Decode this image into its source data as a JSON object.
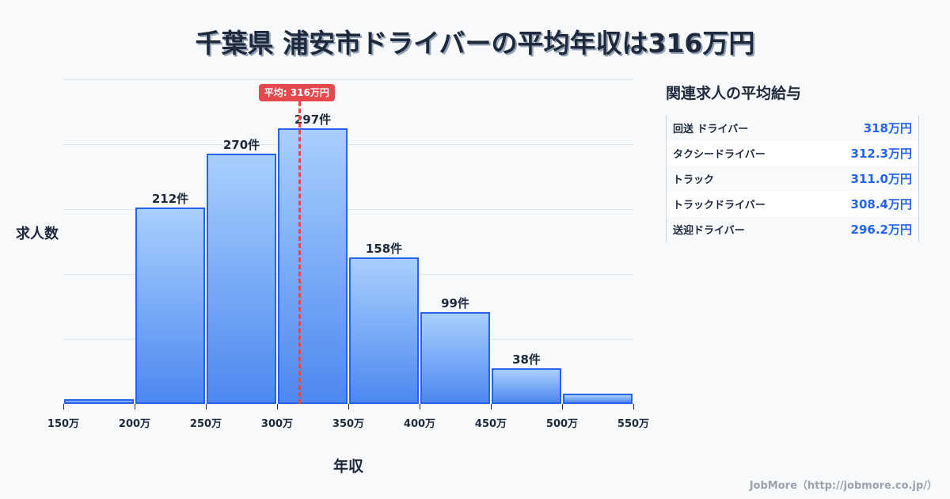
{
  "title": "千葉県 浦安市ドライバーの平均年収は316万円",
  "chart_data": {
    "type": "bar",
    "title": "千葉県 浦安市ドライバーの平均年収は316万円",
    "xlabel": "年収",
    "ylabel": "求人数",
    "categories": [
      "150-200万",
      "200-250万",
      "250-300万",
      "300-350万",
      "350-400万",
      "400-450万",
      "450-500万",
      "500-550万"
    ],
    "bin_edges": [
      150,
      200,
      250,
      300,
      350,
      400,
      450,
      500,
      550
    ],
    "values": [
      5,
      212,
      270,
      297,
      158,
      99,
      38,
      11
    ],
    "labels": [
      "",
      "212件",
      "270件",
      "297件",
      "158件",
      "99件",
      "38件",
      ""
    ],
    "x_tick_labels": [
      "150万",
      "200万",
      "250万",
      "300万",
      "350万",
      "400万",
      "450万",
      "500万",
      "550万"
    ],
    "ylim": [
      0,
      350
    ],
    "grid": true,
    "mean": {
      "value": 316,
      "label": "平均: 316万円"
    },
    "colors": {
      "bar_fill_top": "#a8cffd",
      "bar_fill_bottom": "#4d88f0",
      "bar_border": "#2563eb",
      "mean_line": "#e5484d"
    }
  },
  "side": {
    "title": "関連求人の平均給与",
    "rows": [
      {
        "name": "回送 ドライバー",
        "value": "318万円"
      },
      {
        "name": "タクシードライバー",
        "value": "312.3万円"
      },
      {
        "name": "トラック",
        "value": "311.0万円"
      },
      {
        "name": "トラックドライバー",
        "value": "308.4万円"
      },
      {
        "name": "送迎ドライバー",
        "value": "296.2万円"
      }
    ]
  },
  "footer": "JobMore（http://jobmore.co.jp/）"
}
